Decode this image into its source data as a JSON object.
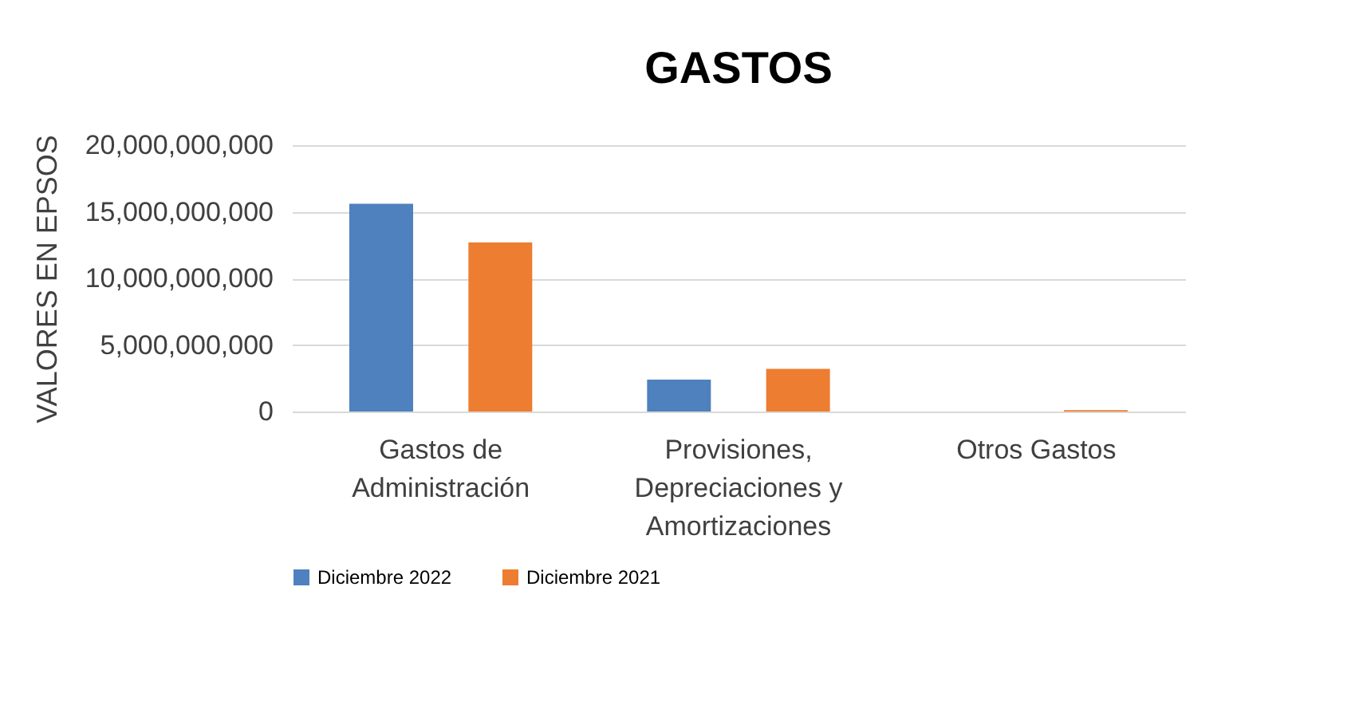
{
  "chart_data": {
    "type": "bar",
    "title": "GASTOS",
    "ylabel": "VALORES EN EPSOS",
    "categories": [
      "Gastos de Administración",
      "Provisiones, Depreciaciones y Amortizaciones",
      "Otros Gastos"
    ],
    "series": [
      {
        "name": "Diciembre 2022",
        "color": "#4e81bd",
        "values": [
          15600000000,
          2400000000,
          null
        ]
      },
      {
        "name": "Diciembre 2021",
        "color": "#ed7d31",
        "values": [
          12700000000,
          3200000000,
          100000000
        ]
      }
    ],
    "ylim": [
      0,
      20000000000
    ],
    "yticks": [
      0,
      {
        "value": 5000000000,
        "label": "5,000,000,000"
      },
      {
        "value": 10000000000,
        "label": "10,000,000,000"
      },
      {
        "value": 15000000000,
        "label": "15,000,000,000"
      },
      {
        "value": 20000000000,
        "label": "20,000,000,000"
      }
    ],
    "grid": "y",
    "legend": "bottom"
  }
}
